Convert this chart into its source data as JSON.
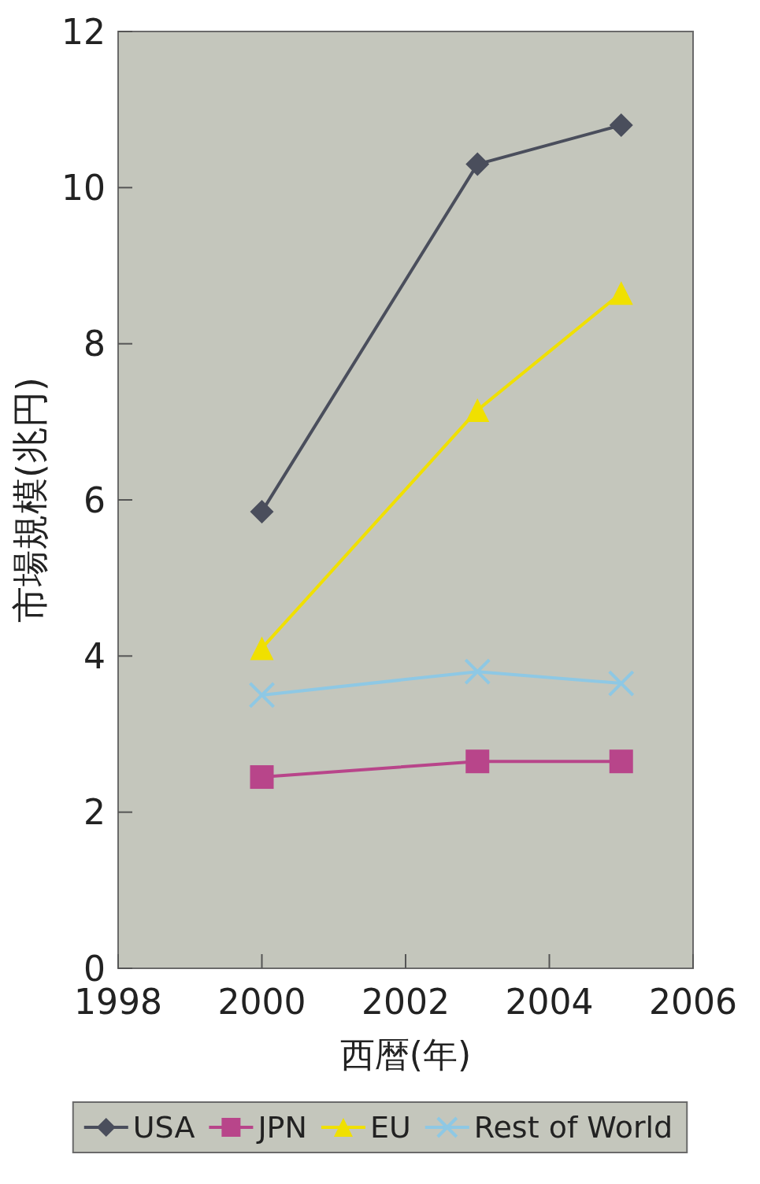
{
  "chart_data": {
    "type": "line",
    "xlabel": "西暦(年)",
    "ylabel": "市場規模(兆円)",
    "x": [
      2000,
      2003,
      2005
    ],
    "xlim": [
      1998,
      2006
    ],
    "xticks": [
      1998,
      2000,
      2002,
      2004,
      2006
    ],
    "ylim": [
      0,
      12
    ],
    "yticks": [
      0,
      2,
      4,
      6,
      8,
      10,
      12
    ],
    "legend": "bottom",
    "line_style": "solid",
    "series": [
      {
        "name": "USA",
        "color": "#4a4e5c",
        "marker": "diamond",
        "values": [
          5.85,
          10.3,
          10.8
        ]
      },
      {
        "name": "JPN",
        "color": "#b8458a",
        "marker": "square",
        "values": [
          2.45,
          2.65,
          2.65
        ]
      },
      {
        "name": "EU",
        "color": "#f0e000",
        "marker": "triangle",
        "values": [
          4.1,
          7.15,
          8.65
        ]
      },
      {
        "name": "Rest of World",
        "color": "#8ec8e4",
        "marker": "cross",
        "values": [
          3.5,
          3.8,
          3.65
        ]
      }
    ]
  }
}
